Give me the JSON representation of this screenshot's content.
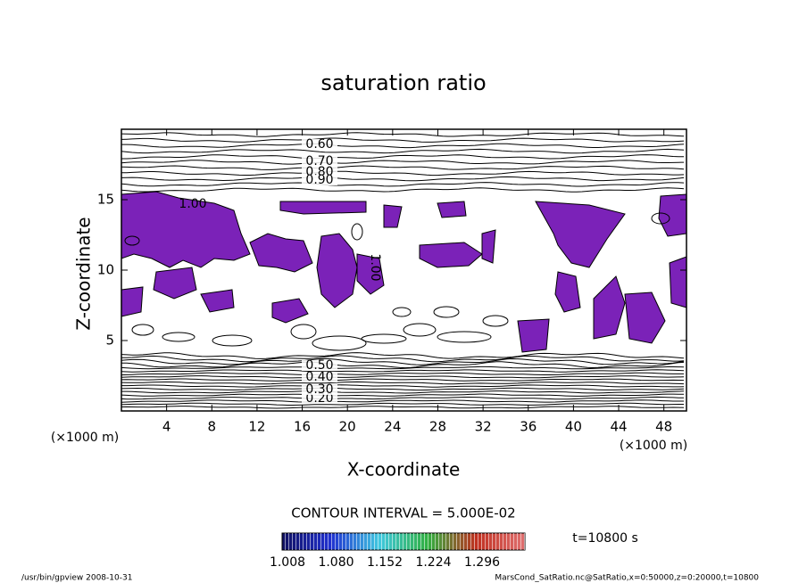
{
  "chart_data": {
    "type": "contour",
    "title": "saturation ratio",
    "xlabel": "X-coordinate",
    "ylabel": "Z-coordinate",
    "xunit": "(×1000 m)",
    "xlim": [
      0,
      50
    ],
    "xticks": [
      4,
      8,
      12,
      16,
      20,
      24,
      28,
      32,
      36,
      40,
      44,
      48
    ],
    "ylim": [
      0,
      20
    ],
    "yticks": [
      5,
      10,
      15
    ],
    "contour_labels": [
      "0.60",
      "0.70",
      "0.80",
      "0.90",
      "1.00",
      "1.00",
      "0.20",
      "0.30",
      "0.40",
      "0.50"
    ],
    "contour_interval": "CONTOUR INTERVAL = 5.000E-02",
    "colorbar_labels": [
      "1.008",
      "1.080",
      "1.152",
      "1.224",
      "1.296"
    ],
    "time_label": "t=10800 s",
    "footer_left": "/usr/bin/gpview  2008-10-31",
    "footer_right": "MarsCond_SatRatio.nc@SatRatio,x=0:50000,z=0:20000,t=10800"
  }
}
